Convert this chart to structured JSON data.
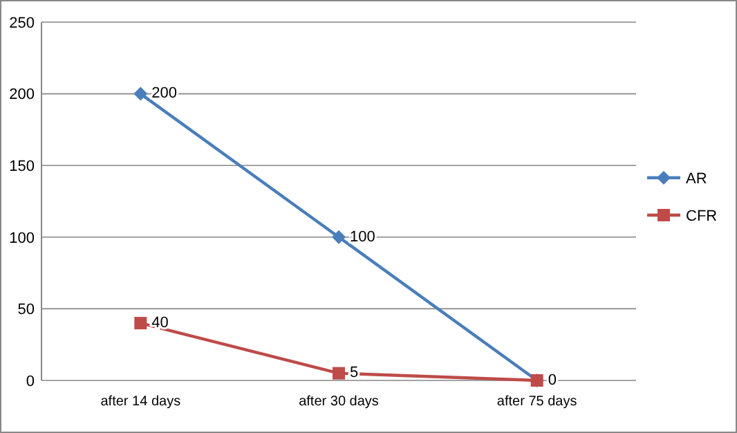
{
  "chart_data": {
    "type": "line",
    "categories": [
      "after 14 days",
      "after 30 days",
      "after 75 days"
    ],
    "series": [
      {
        "name": "AR",
        "color": "#4a7ebb",
        "values": [
          200,
          100,
          0
        ],
        "marker": "diamond",
        "value_labels": [
          "200",
          "100",
          "0"
        ]
      },
      {
        "name": "CFR",
        "color": "#be4b48",
        "values": [
          40,
          5,
          0
        ],
        "marker": "square",
        "value_labels": [
          "40",
          "5",
          null
        ]
      }
    ],
    "ylim": [
      0,
      250
    ],
    "yticks": [
      0,
      50,
      100,
      150,
      200,
      250
    ],
    "grid": "y",
    "legend": "right"
  }
}
